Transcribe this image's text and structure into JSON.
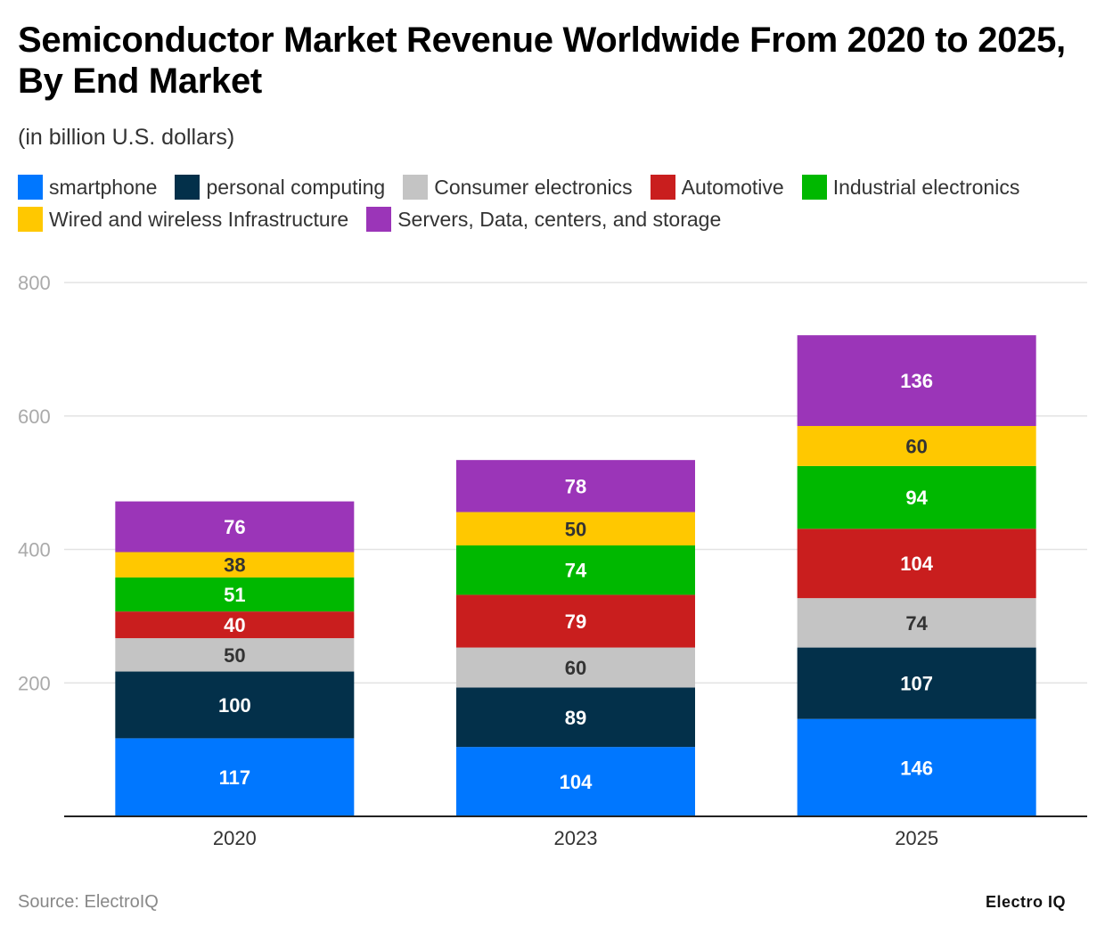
{
  "chart_data": {
    "type": "bar",
    "stacked": true,
    "title": "Semiconductor Market Revenue Worldwide From 2020 to 2025, By End Market",
    "subtitle": "(in billion U.S. dollars)",
    "categories": [
      "2020",
      "2023",
      "2025"
    ],
    "ylim": [
      0,
      800
    ],
    "yticks": [
      200,
      400,
      600,
      800
    ],
    "grid": true,
    "legend_placement": "top",
    "series": [
      {
        "name": "smartphone",
        "color": "#0077ff",
        "label_color": "#ffffff",
        "values": [
          117,
          104,
          146
        ]
      },
      {
        "name": "personal computing",
        "color": "#03304a",
        "label_color": "#ffffff",
        "values": [
          100,
          89,
          107
        ]
      },
      {
        "name": "Consumer electronics",
        "color": "#c4c4c4",
        "label_color": "#333333",
        "values": [
          50,
          60,
          74
        ]
      },
      {
        "name": "Automotive",
        "color": "#c91e1e",
        "label_color": "#ffffff",
        "values": [
          40,
          79,
          104
        ]
      },
      {
        "name": "Industrial electronics",
        "color": "#00b800",
        "label_color": "#ffffff",
        "values": [
          51,
          74,
          94
        ]
      },
      {
        "name": "Wired and wireless Infrastructure",
        "color": "#ffc800",
        "label_color": "#333333",
        "values": [
          38,
          50,
          60
        ]
      },
      {
        "name": "Servers, Data, centers, and storage",
        "color": "#9b35b8",
        "label_color": "#ffffff",
        "values": [
          76,
          78,
          136
        ]
      }
    ]
  },
  "footer": {
    "source": "Source: ElectroIQ",
    "logo": "Electro IQ"
  }
}
